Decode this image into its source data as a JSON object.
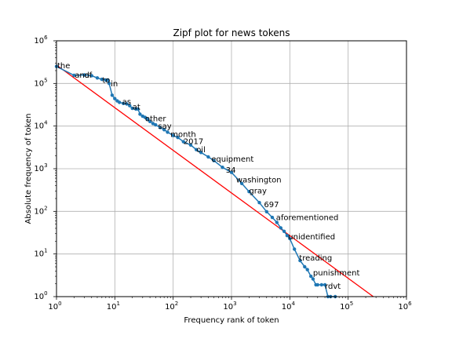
{
  "chart_data": {
    "type": "line",
    "title": "Zipf plot for news tokens",
    "xlabel": "Frequency rank of token",
    "ylabel": "Absolute frequency of token",
    "xscale": "log",
    "yscale": "log",
    "xlim": [
      1,
      1000000
    ],
    "ylim": [
      1,
      1000000
    ],
    "x_ticks": [
      {
        "base": "10",
        "exp": "0"
      },
      {
        "base": "10",
        "exp": "1"
      },
      {
        "base": "10",
        "exp": "2"
      },
      {
        "base": "10",
        "exp": "3"
      },
      {
        "base": "10",
        "exp": "4"
      },
      {
        "base": "10",
        "exp": "5"
      },
      {
        "base": "10",
        "exp": "6"
      }
    ],
    "y_ticks": [
      {
        "base": "10",
        "exp": "0"
      },
      {
        "base": "10",
        "exp": "1"
      },
      {
        "base": "10",
        "exp": "2"
      },
      {
        "base": "10",
        "exp": "3"
      },
      {
        "base": "10",
        "exp": "4"
      },
      {
        "base": "10",
        "exp": "5"
      },
      {
        "base": "10",
        "exp": "6"
      }
    ],
    "grid": true,
    "colors": {
      "data": "#1f77b4",
      "fit": "#ff0000",
      "grid": "#b0b0b0"
    },
    "series": [
      {
        "kind": "observed",
        "x": [
          1,
          2,
          3,
          4,
          5,
          6,
          7,
          7.6,
          8,
          9,
          10,
          11,
          12,
          14,
          16,
          18,
          20,
          23,
          25,
          27,
          30,
          33,
          36,
          40,
          45,
          50,
          60,
          70,
          80,
          100,
          120,
          150,
          200,
          250,
          300,
          400,
          500,
          700,
          1000,
          1500,
          2000,
          3000,
          4000,
          5000,
          6000,
          7000,
          8000,
          9000,
          10000,
          12000,
          15000,
          18000,
          20000,
          23000,
          25000,
          28000,
          30000,
          35000,
          40000,
          45000,
          50000,
          60000
        ],
        "y": [
          250000,
          155000,
          158000,
          152000,
          135000,
          125000,
          120000,
          120000,
          100000,
          53000,
          44000,
          39000,
          36000,
          34000,
          33000,
          30000,
          26000,
          25000,
          25000,
          19000,
          17000,
          16000,
          14500,
          12800,
          11500,
          10700,
          9200,
          8200,
          7200,
          6000,
          5400,
          4300,
          3600,
          2800,
          2400,
          1900,
          1550,
          1080,
          820,
          450,
          290,
          160,
          98,
          72,
          55,
          41,
          34,
          27,
          23,
          13,
          7,
          5,
          4.3,
          3,
          2.6,
          1.9,
          1.9,
          1.9,
          1.9,
          1,
          1,
          1
        ]
      },
      {
        "kind": "fit",
        "x": [
          1,
          270000
        ],
        "y": [
          270000,
          1
        ]
      }
    ],
    "annotations": [
      {
        "text": "the",
        "x": 1.03,
        "y": 270000
      },
      {
        "text": "and",
        "x": 2.05,
        "y": 160000
      },
      {
        "text": "of",
        "x": 3.0,
        "y": 160000
      },
      {
        "text": "to",
        "x": 6.1,
        "y": 122000
      },
      {
        "text": "in",
        "x": 8.5,
        "y": 102000
      },
      {
        "text": "as",
        "x": 13.4,
        "y": 38000
      },
      {
        "text": "at",
        "x": 20.0,
        "y": 29000
      },
      {
        "text": "other",
        "x": 33.0,
        "y": 15500
      },
      {
        "text": "say",
        "x": 55.0,
        "y": 10300
      },
      {
        "text": "month",
        "x": 90.0,
        "y": 6600
      },
      {
        "text": "2017",
        "x": 150.0,
        "y": 4500
      },
      {
        "text": "oil",
        "x": 250.0,
        "y": 2900
      },
      {
        "text": "equipment",
        "x": 450.0,
        "y": 1750
      },
      {
        "text": "34",
        "x": 800.0,
        "y": 960
      },
      {
        "text": "washington",
        "x": 1200.0,
        "y": 560
      },
      {
        "text": "gray",
        "x": 2000.0,
        "y": 310
      },
      {
        "text": "697",
        "x": 3600.0,
        "y": 150
      },
      {
        "text": "aforementioned",
        "x": 5800.0,
        "y": 74
      },
      {
        "text": "unidentified",
        "x": 9400.0,
        "y": 26
      },
      {
        "text": "treading",
        "x": 14500.0,
        "y": 8.4
      },
      {
        "text": "punishment",
        "x": 25000.0,
        "y": 3.7
      },
      {
        "text": "rdvt",
        "x": 40000.0,
        "y": 1.8
      }
    ]
  }
}
